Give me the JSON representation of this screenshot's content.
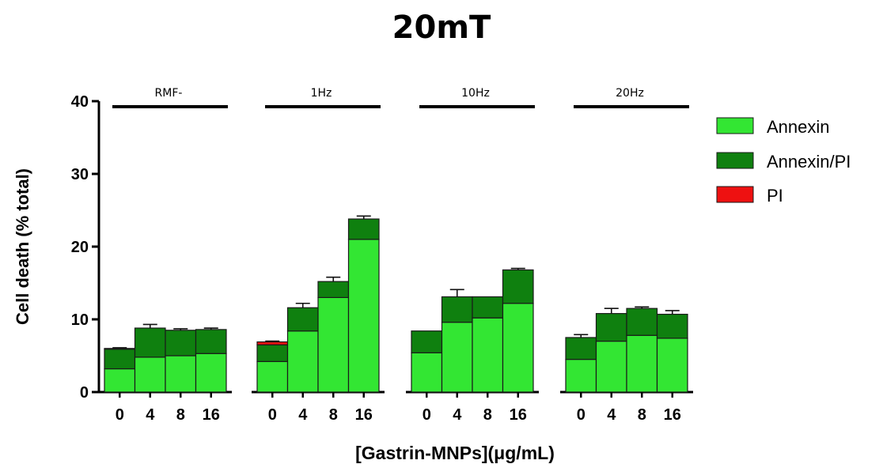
{
  "chart_data": {
    "type": "bar",
    "stacked": true,
    "title": "20mT",
    "xlabel": "[Gastrin-MNPs](μg/mL)",
    "ylabel": "Cell death (% total)",
    "ylim": [
      0,
      40
    ],
    "yticks": [
      0,
      10,
      20,
      30,
      40
    ],
    "groups": [
      {
        "name": "RMF-",
        "categories": [
          "0",
          "4",
          "8",
          "16"
        ]
      },
      {
        "name": "1Hz",
        "categories": [
          "0",
          "4",
          "8",
          "16"
        ]
      },
      {
        "name": "10Hz",
        "categories": [
          "0",
          "4",
          "8",
          "16"
        ]
      },
      {
        "name": "20Hz",
        "categories": [
          "0",
          "4",
          "8",
          "16"
        ]
      }
    ],
    "series": [
      {
        "name": "Annexin",
        "color": "#33e633",
        "values": [
          3.2,
          4.8,
          5.0,
          5.3,
          4.2,
          8.4,
          13.0,
          21.0,
          5.4,
          9.6,
          10.2,
          12.2,
          4.5,
          7.0,
          7.8,
          7.4
        ],
        "errors": [
          0.4,
          0.6,
          0.3,
          0.3,
          1.0,
          1.8,
          0.5,
          2.5,
          1.0,
          1.6,
          1.0,
          2.6,
          0.8,
          0.5,
          1.2,
          1.5
        ]
      },
      {
        "name": "Annexin/PI",
        "color": "#0f800f",
        "values": [
          2.7,
          4.0,
          3.5,
          3.3,
          2.3,
          3.2,
          2.2,
          2.8,
          3.0,
          3.5,
          2.9,
          4.6,
          3.0,
          3.8,
          3.7,
          3.3
        ],
        "errors": [
          0.2,
          0.5,
          0.2,
          0.2,
          0.3,
          0.6,
          0.6,
          0.4,
          0.0,
          1.0,
          0.0,
          0.2,
          0.4,
          0.7,
          0.2,
          0.5
        ]
      },
      {
        "name": "PI",
        "color": "#ee1111",
        "values": [
          0.1,
          0.0,
          0.0,
          0.0,
          0.4,
          0.0,
          0.0,
          0.0,
          0.0,
          0.0,
          0.0,
          0.0,
          0.0,
          0.0,
          0.0,
          0.0
        ],
        "errors": [
          0,
          0,
          0,
          0,
          0.1,
          0,
          0,
          0,
          0,
          0,
          0,
          0,
          0,
          0,
          0,
          0
        ]
      }
    ],
    "legend_position": "right",
    "grid": false
  }
}
